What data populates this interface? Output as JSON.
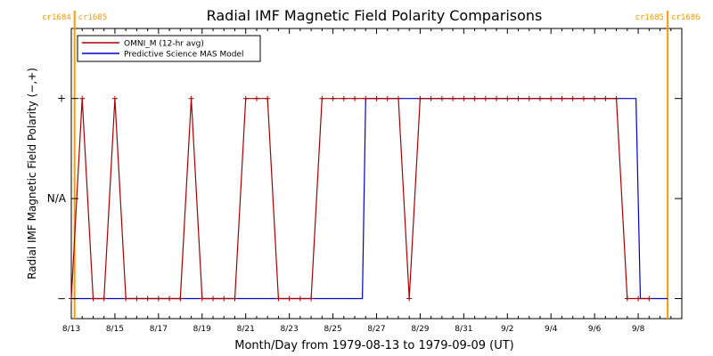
{
  "chart_data": {
    "type": "line",
    "title": "Radial IMF Magnetic Field Polarity Comparisons",
    "xlabel": "Month/Day from 1979-08-13 to 1979-09-09 (UT)",
    "ylabel": "Radial IMF Magnetic Field Polarity (−,+)",
    "xlim": [
      0,
      28
    ],
    "ylim": [
      -1.7,
      1.2
    ],
    "x_ticks": [
      {
        "x": 0,
        "label": "8/13"
      },
      {
        "x": 2,
        "label": "8/15"
      },
      {
        "x": 4,
        "label": "8/17"
      },
      {
        "x": 6,
        "label": "8/19"
      },
      {
        "x": 8,
        "label": "8/21"
      },
      {
        "x": 10,
        "label": "8/23"
      },
      {
        "x": 12,
        "label": "8/25"
      },
      {
        "x": 14,
        "label": "8/27"
      },
      {
        "x": 16,
        "label": "8/29"
      },
      {
        "x": 18,
        "label": "8/31"
      },
      {
        "x": 20,
        "label": "9/2"
      },
      {
        "x": 22,
        "label": "9/4"
      },
      {
        "x": 24,
        "label": "9/6"
      },
      {
        "x": 26,
        "label": "9/8"
      }
    ],
    "y_ticks": [
      {
        "y": 0.5,
        "label": "+"
      },
      {
        "y": -0.5,
        "label": "N/A"
      },
      {
        "y": -1.5,
        "label": "−"
      }
    ],
    "carrington_markers": [
      {
        "x": 0.15,
        "left_label": "cr1684",
        "right_label": "cr1685"
      },
      {
        "x": 27.35,
        "left_label": "cr1685",
        "right_label": "cr1686"
      }
    ],
    "legend": {
      "placement": "top-left"
    },
    "series": [
      {
        "name": "OMNI_M (12-hr avg)",
        "color": "#a80000",
        "markers": true,
        "points": [
          [
            0,
            -1.5
          ],
          [
            0.5,
            0.5
          ],
          [
            1,
            -1.5
          ],
          [
            1.5,
            -1.5
          ],
          [
            2,
            0.5
          ],
          [
            2.5,
            -1.5
          ],
          [
            3,
            -1.5
          ],
          [
            3.5,
            -1.5
          ],
          [
            4,
            -1.5
          ],
          [
            4.5,
            -1.5
          ],
          [
            5,
            -1.5
          ],
          [
            5.5,
            0.5
          ],
          [
            6,
            -1.5
          ],
          [
            6.5,
            -1.5
          ],
          [
            7,
            -1.5
          ],
          [
            7.5,
            -1.5
          ],
          [
            8,
            0.5
          ],
          [
            8.5,
            0.5
          ],
          [
            9,
            0.5
          ],
          [
            9.5,
            -1.5
          ],
          [
            10,
            -1.5
          ],
          [
            10.5,
            -1.5
          ],
          [
            11,
            -1.5
          ],
          [
            11.5,
            0.5
          ],
          [
            12,
            0.5
          ],
          [
            12.5,
            0.5
          ],
          [
            13,
            0.5
          ],
          [
            13.5,
            0.5
          ],
          [
            14,
            0.5
          ],
          [
            14.5,
            0.5
          ],
          [
            15,
            0.5
          ],
          [
            15.5,
            -1.5
          ],
          [
            16,
            0.5
          ],
          [
            16.5,
            0.5
          ],
          [
            17,
            0.5
          ],
          [
            17.5,
            0.5
          ],
          [
            18,
            0.5
          ],
          [
            18.5,
            0.5
          ],
          [
            19,
            0.5
          ],
          [
            19.5,
            0.5
          ],
          [
            20,
            0.5
          ],
          [
            20.5,
            0.5
          ],
          [
            21,
            0.5
          ],
          [
            21.5,
            0.5
          ],
          [
            22,
            0.5
          ],
          [
            22.5,
            0.5
          ],
          [
            23,
            0.5
          ],
          [
            23.5,
            0.5
          ],
          [
            24,
            0.5
          ],
          [
            24.5,
            0.5
          ],
          [
            25,
            0.5
          ],
          [
            25.5,
            -1.5
          ],
          [
            26,
            -1.5
          ],
          [
            26.5,
            -1.5
          ]
        ]
      },
      {
        "name": "Predictive Science MAS Model",
        "color": "#0000cc",
        "markers": false,
        "points": [
          [
            0,
            -1.5
          ],
          [
            13.35,
            -1.5
          ],
          [
            13.5,
            0.5
          ],
          [
            25.9,
            0.5
          ],
          [
            26.1,
            -1.5
          ],
          [
            27.35,
            -1.5
          ]
        ]
      }
    ],
    "grid": false
  }
}
